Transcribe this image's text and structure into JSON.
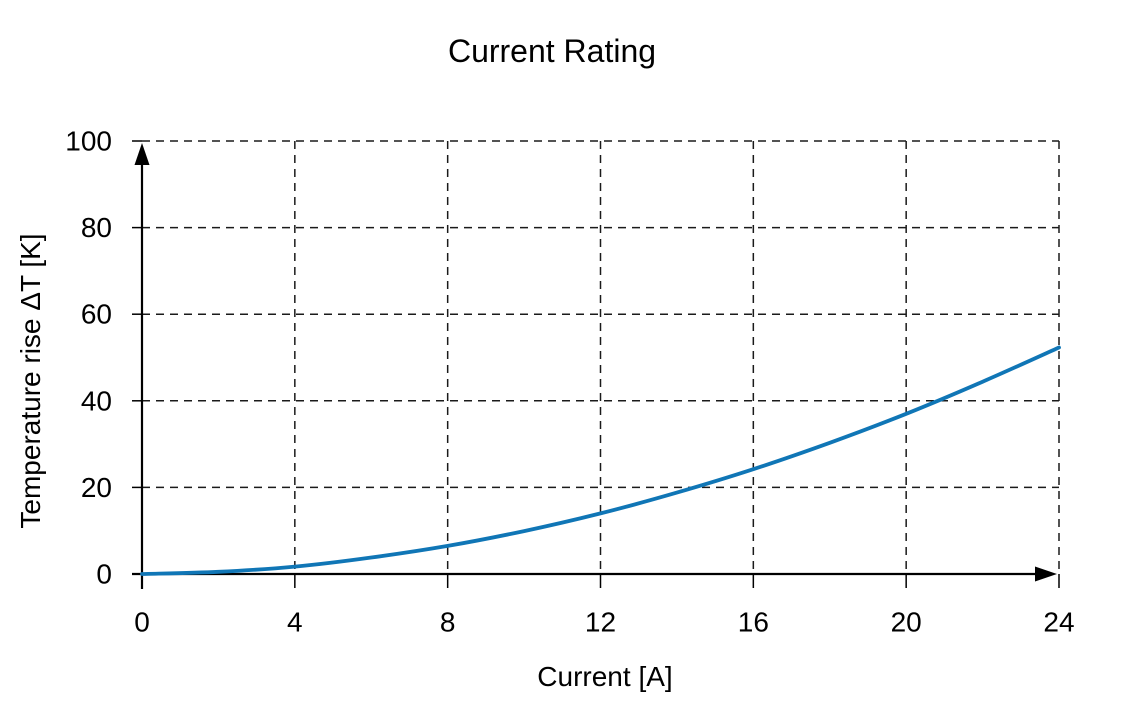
{
  "page": {
    "background": "#ffffff",
    "text_color": "#000000"
  },
  "chart_data": {
    "type": "line",
    "title": "Current Rating",
    "xlabel": "Current [A]",
    "ylabel": "Temperature rise ΔT [K]",
    "xlim": [
      0,
      24
    ],
    "ylim": [
      0,
      100
    ],
    "x_ticks": [
      0,
      4,
      8,
      12,
      16,
      20,
      24
    ],
    "y_ticks": [
      0,
      20,
      40,
      60,
      80,
      100
    ],
    "grid": "dashed-black-both-axes",
    "legend": "none",
    "axes_style": "arrow-tipped black axes, ticks crossing axis lines",
    "series": [
      {
        "name": "temperature-rise-vs-current",
        "color": "#1076b6",
        "x": [
          0,
          2,
          4,
          6,
          8,
          10,
          12,
          14,
          16,
          18,
          20,
          22,
          24
        ],
        "values": [
          0,
          0.5,
          1.7,
          3.8,
          6.5,
          9.9,
          14.0,
          18.8,
          24.2,
          30.3,
          37.0,
          44.4,
          52.3
        ]
      }
    ]
  }
}
